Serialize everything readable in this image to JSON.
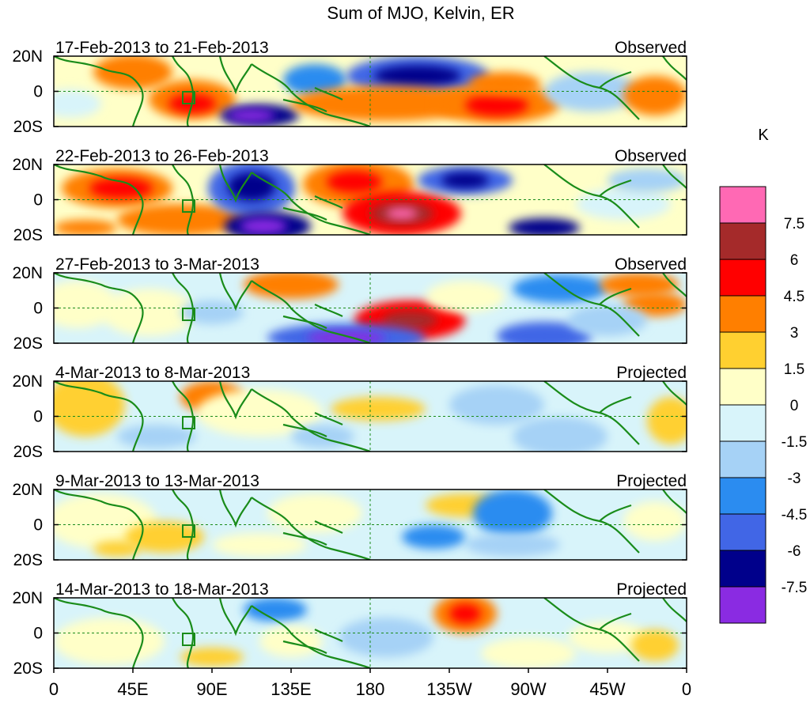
{
  "title": "Sum of MJO, Kelvin, ER",
  "lat_labels": [
    "20N",
    "0",
    "20S"
  ],
  "lon_labels": [
    "0",
    "45E",
    "90E",
    "135E",
    "180",
    "135W",
    "90W",
    "45W",
    "0"
  ],
  "panels": [
    {
      "period": "17-Feb-2013 to 21-Feb-2013",
      "status": "Observed"
    },
    {
      "period": "22-Feb-2013 to 26-Feb-2013",
      "status": "Observed"
    },
    {
      "period": "27-Feb-2013 to 3-Mar-2013",
      "status": "Observed"
    },
    {
      "period": "4-Mar-2013 to 8-Mar-2013",
      "status": "Projected"
    },
    {
      "period": "9-Mar-2013 to 13-Mar-2013",
      "status": "Projected"
    },
    {
      "period": "14-Mar-2013 to 18-Mar-2013",
      "status": "Projected"
    }
  ],
  "colorbar": {
    "unit": "K",
    "colors": [
      "#ff69b4",
      "#a52a2a",
      "#ff0000",
      "#ff7f00",
      "#ffd030",
      "#ffffc8",
      "#d8f4fa",
      "#a6d2f6",
      "#2b8cf0",
      "#4166e6",
      "#00008b",
      "#8a2be2"
    ],
    "labels": [
      "7.5",
      "6",
      "4.5",
      "3",
      "1.5",
      "0",
      "-1.5",
      "-3",
      "-4.5",
      "-6",
      "-7.5"
    ]
  },
  "colors": {
    "coastline": "#1a8c1a",
    "frame": "#000000"
  }
}
